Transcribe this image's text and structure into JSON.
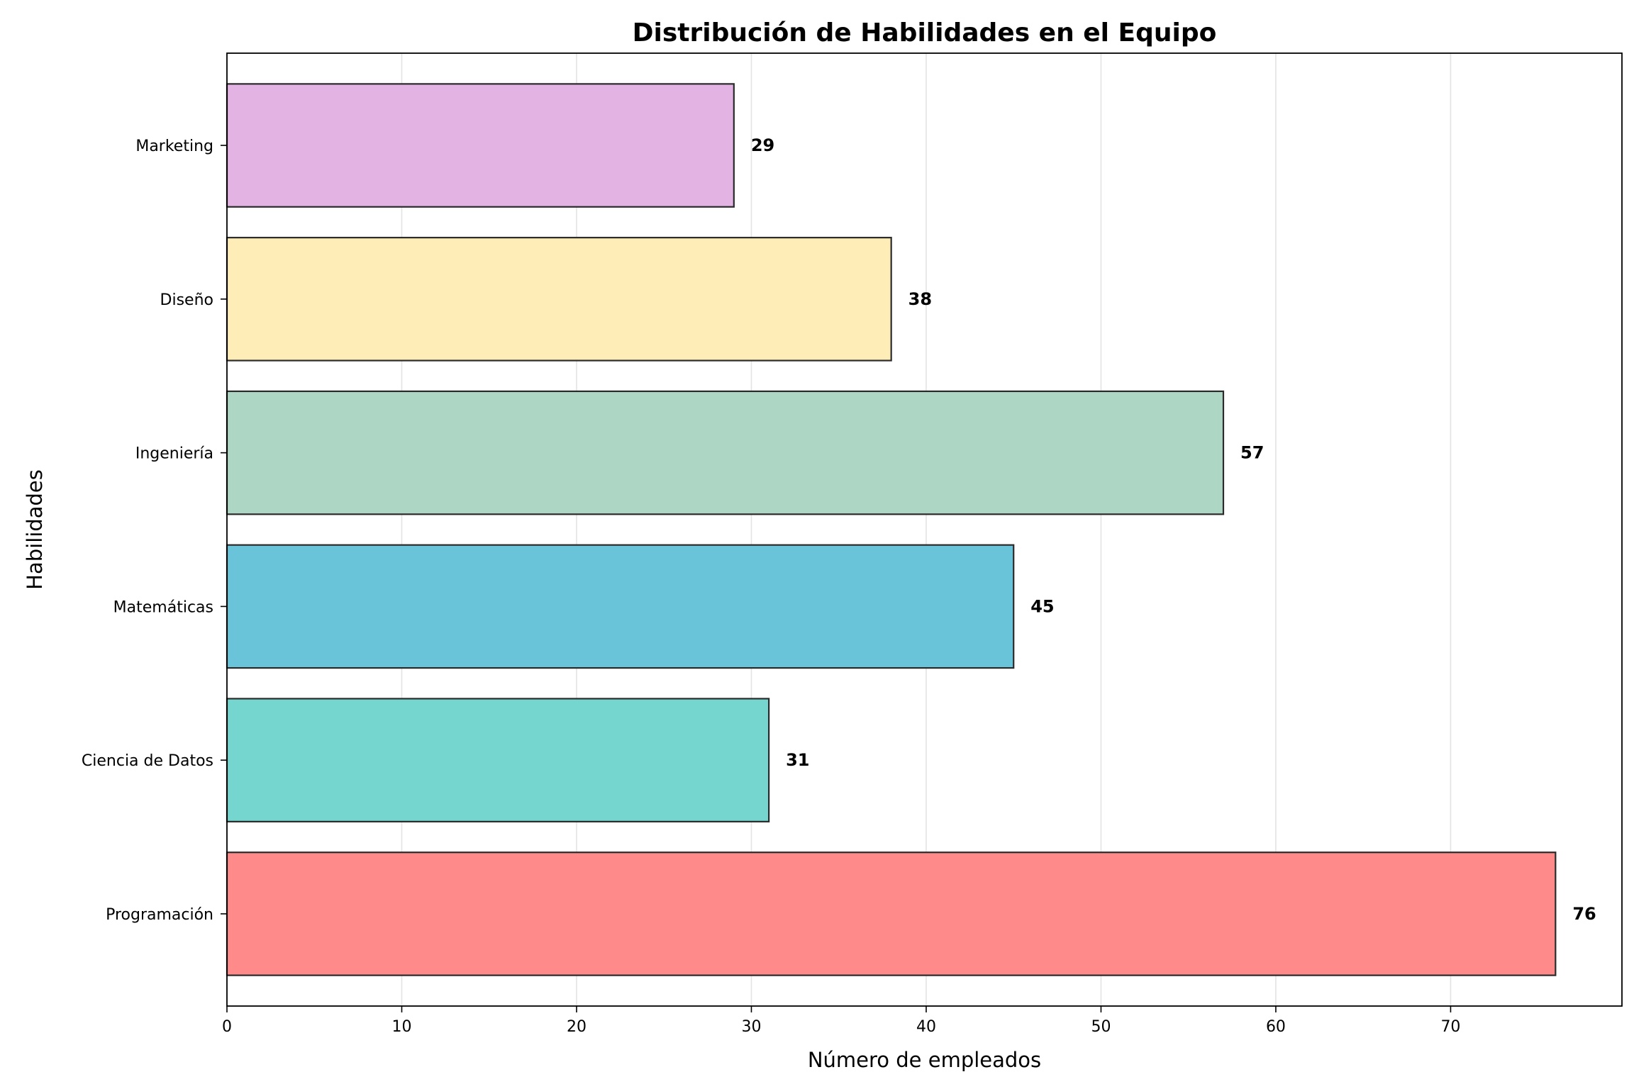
{
  "chart_data": {
    "type": "bar",
    "orientation": "horizontal",
    "title": "Distribución de Habilidades en el Equipo",
    "xlabel": "Número de empleados",
    "ylabel": "Habilidades",
    "categories": [
      "Programación",
      "Ciencia de Datos",
      "Matemáticas",
      "Ingeniería",
      "Diseño",
      "Marketing"
    ],
    "values": [
      76,
      31,
      45,
      57,
      38,
      29
    ],
    "value_labels": [
      "76",
      "31",
      "45",
      "57",
      "38",
      "29"
    ],
    "colors": [
      "#FF8A8A",
      "#74D6CE",
      "#6AC4D9",
      "#ADD7C4",
      "#FFEDB8",
      "#E2B3E3"
    ],
    "xlim": [
      0,
      79.8
    ],
    "xticks": [
      0,
      10,
      20,
      30,
      40,
      50,
      60,
      70
    ],
    "xtick_labels": [
      "0",
      "10",
      "20",
      "30",
      "40",
      "50",
      "60",
      "70"
    ],
    "grid": "x-axis vertical lines",
    "legend": "none"
  }
}
